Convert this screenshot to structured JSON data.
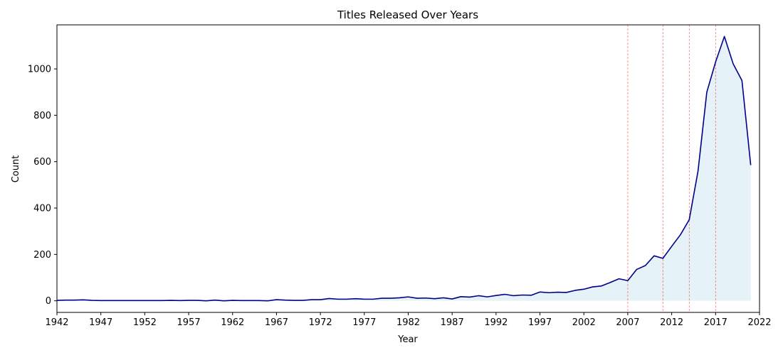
{
  "chart_data": {
    "type": "area",
    "title": "Titles Released Over Years",
    "xlabel": "Year",
    "ylabel": "Count",
    "xlim": [
      1942,
      2022
    ],
    "ylim": [
      -50,
      1190
    ],
    "x_ticks": [
      1942,
      1947,
      1952,
      1957,
      1962,
      1967,
      1972,
      1977,
      1982,
      1987,
      1992,
      1997,
      2002,
      2007,
      2012,
      2017,
      2022
    ],
    "y_ticks": [
      0,
      200,
      400,
      600,
      800,
      1000
    ],
    "grid": false,
    "reference_lines_x": [
      2007,
      2011,
      2014,
      2017
    ],
    "colors": {
      "line": "#00008b",
      "fill": "#add8e6",
      "reference": "#ff0000"
    },
    "x": [
      1942,
      1943,
      1944,
      1945,
      1946,
      1947,
      1948,
      1949,
      1950,
      1951,
      1952,
      1953,
      1954,
      1955,
      1956,
      1957,
      1958,
      1959,
      1960,
      1961,
      1962,
      1963,
      1964,
      1965,
      1966,
      1967,
      1968,
      1969,
      1970,
      1971,
      1972,
      1973,
      1974,
      1975,
      1976,
      1977,
      1978,
      1979,
      1980,
      1981,
      1982,
      1983,
      1984,
      1985,
      1986,
      1987,
      1988,
      1989,
      1990,
      1991,
      1992,
      1993,
      1994,
      1995,
      1996,
      1997,
      1998,
      1999,
      2000,
      2001,
      2002,
      2003,
      2004,
      2005,
      2006,
      2007,
      2008,
      2009,
      2010,
      2011,
      2012,
      2013,
      2014,
      2015,
      2016,
      2017,
      2018,
      2019,
      2020,
      2021
    ],
    "y": [
      2,
      3,
      3,
      4,
      2,
      1,
      1,
      1,
      1,
      1,
      1,
      1,
      1,
      2,
      1,
      2,
      2,
      0,
      3,
      0,
      2,
      1,
      1,
      1,
      0,
      5,
      3,
      2,
      2,
      5,
      5,
      10,
      7,
      7,
      9,
      7,
      7,
      11,
      11,
      13,
      17,
      11,
      12,
      9,
      13,
      8,
      18,
      16,
      22,
      17,
      23,
      28,
      22,
      25,
      24,
      38,
      35,
      37,
      36,
      45,
      50,
      60,
      64,
      79,
      95,
      87,
      135,
      152,
      194,
      183,
      235,
      285,
      350,
      560,
      900,
      1030,
      1140,
      1022,
      950,
      585
    ]
  }
}
